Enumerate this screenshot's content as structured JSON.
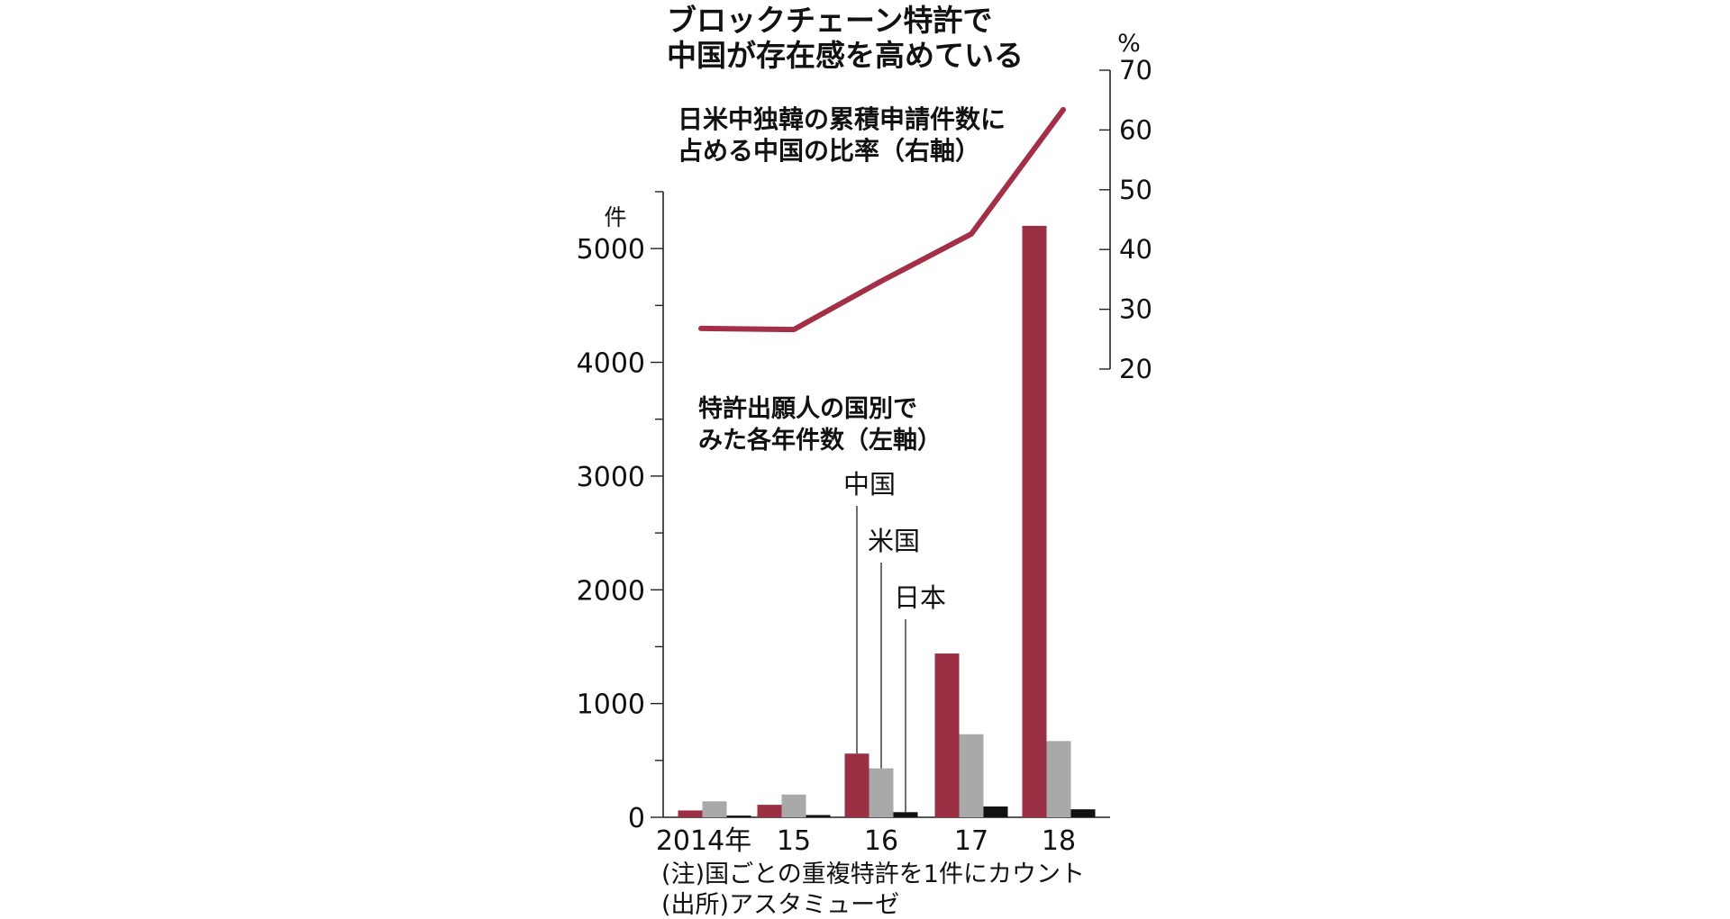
{
  "chart_data": {
    "type": "bar",
    "title": [
      "ブロックチェーン特許で",
      "中国が存在感を高めている"
    ],
    "categories": [
      "2014年",
      "15",
      "16",
      "17",
      "18"
    ],
    "left_axis": {
      "unit": "件",
      "range": [
        0,
        5500
      ],
      "ticks": [
        0,
        1000,
        2000,
        3000,
        4000,
        5000
      ],
      "minor_step": 500
    },
    "right_axis": {
      "unit": "%",
      "range": [
        20,
        70
      ],
      "ticks": [
        20,
        30,
        40,
        50,
        60,
        70
      ]
    },
    "bar_caption": [
      "特許出願人の国別で",
      "みた各年件数（左軸）"
    ],
    "line_caption": [
      "日米中独韓の累積申請件数に",
      "占める中国の比率（右軸）"
    ],
    "series": [
      {
        "name": "中国",
        "color": "#9b3045",
        "values": [
          60,
          110,
          560,
          1440,
          5200
        ]
      },
      {
        "name": "米国",
        "color": "#a9a9a9",
        "values": [
          140,
          200,
          430,
          730,
          670
        ]
      },
      {
        "name": "日本",
        "color": "#111111",
        "values": [
          15,
          20,
          45,
          95,
          70
        ]
      }
    ],
    "line": {
      "name": "中国の比率",
      "color": "#a33047",
      "values": [
        26.8,
        26.6,
        34.7,
        42.6,
        63.4
      ]
    },
    "notes": [
      "(注)国ごとの重複特許を1件にカウント",
      "(出所)アスタミューゼ"
    ]
  }
}
